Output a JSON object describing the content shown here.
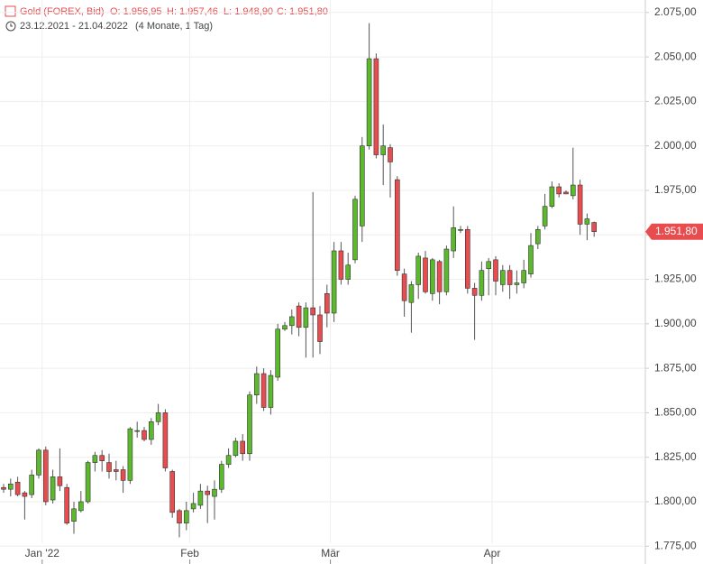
{
  "chart_data": {
    "type": "candlestick",
    "title": "Gold (FOREX, Bid)",
    "ohlc_labels": [
      "O: 1.956,95",
      "H: 1.957,46",
      "L: 1.948,90",
      "C: 1.951,80"
    ],
    "period": "23.12.2021 - 21.04.2022",
    "period_length": "(4 Monate, 1 Tag)",
    "up_color": "#5cb82c",
    "down_color": "#e84c4f",
    "last_price": {
      "value": 1951.8,
      "label": "1.951,80"
    },
    "categories": [
      null,
      null,
      null,
      null,
      null,
      null,
      "Jan '22",
      null,
      null,
      null,
      null,
      null,
      null,
      null,
      null,
      null,
      null,
      null,
      null,
      null,
      null,
      null,
      null,
      null,
      null,
      null,
      null,
      "Feb",
      null,
      null,
      null,
      null,
      null,
      null,
      null,
      null,
      null,
      null,
      null,
      null,
      null,
      null,
      null,
      null,
      null,
      null,
      null,
      "Mär",
      null,
      null,
      null,
      null,
      null,
      null,
      null,
      null,
      null,
      null,
      null,
      null,
      null,
      null,
      null,
      null,
      null,
      null,
      null,
      null,
      null,
      null,
      "Apr",
      null,
      null,
      null,
      null,
      null,
      null,
      null,
      null,
      null,
      null,
      null,
      null,
      null,
      null
    ],
    "series": {
      "open": [
        1808,
        1807,
        1811,
        1805,
        1804,
        1815,
        1829,
        1801,
        1814,
        1808,
        1789,
        1795,
        1800,
        1822,
        1826,
        1822,
        1818,
        1818,
        1812,
        1840,
        1840,
        1835,
        1845,
        1850,
        1817,
        1795,
        1788,
        1796,
        1798,
        1806,
        1803,
        1807,
        1821,
        1826,
        1834,
        1827,
        1860,
        1872,
        1853,
        1870,
        1897,
        1899,
        1910,
        1898,
        1909,
        1905,
        1917,
        1906,
        1941,
        1925,
        1936,
        1955,
        2000,
        2049,
        1995,
        1999,
        1981,
        1928,
        1912,
        1922,
        1937,
        1917,
        1935,
        1918,
        1941,
        1953,
        1953,
        1920,
        1916,
        1931,
        1936,
        1922,
        1930,
        1922,
        1923,
        1928,
        1945,
        1955,
        1966,
        1977,
        1974,
        1972,
        1978,
        1956,
        1956.95
      ],
      "high": [
        1810,
        1813,
        1814,
        1806,
        1818,
        1830,
        1831,
        1818,
        1830,
        1810,
        1800,
        1806,
        1823,
        1828,
        1829,
        1827,
        1823,
        1820,
        1842,
        1845,
        1842,
        1847,
        1855,
        1852,
        1818,
        1796,
        1800,
        1805,
        1810,
        1809,
        1812,
        1823,
        1830,
        1836,
        1838,
        1862,
        1876,
        1875,
        1874,
        1900,
        1901,
        1908,
        1912,
        1912,
        1974,
        1910,
        1922,
        1946,
        1946,
        1940,
        1972,
        2005,
        2069,
        2052,
        2012,
        2001,
        1983,
        1931,
        1924,
        1940,
        1941,
        1937,
        1936,
        1944,
        1966,
        1955,
        1955,
        1923,
        1935,
        1937,
        1938,
        1933,
        1933,
        1930,
        1936,
        1951,
        1955,
        1973,
        1980,
        1979,
        1975,
        1999,
        1981,
        1962,
        1957.46
      ],
      "low": [
        1805,
        1803,
        1803,
        1790,
        1802,
        1813,
        1798,
        1799,
        1806,
        1787,
        1782,
        1794,
        1799,
        1817,
        1817,
        1813,
        1812,
        1805,
        1810,
        1836,
        1834,
        1832,
        1843,
        1817,
        1791,
        1780,
        1784,
        1794,
        1796,
        1788,
        1790,
        1805,
        1819,
        1825,
        1823,
        1823,
        1855,
        1851,
        1849,
        1868,
        1896,
        1894,
        1893,
        1881,
        1881,
        1883,
        1898,
        1901,
        1922,
        1922,
        1934,
        1946,
        1998,
        1993,
        1978,
        1971,
        1927,
        1904,
        1895,
        1914,
        1917,
        1913,
        1911,
        1916,
        1937,
        1951,
        1917,
        1891,
        1913,
        1916,
        1916,
        1918,
        1914,
        1917,
        1920,
        1926,
        1942,
        1953,
        1965,
        1971,
        1973,
        1970,
        1950,
        1947,
        1948.9
      ],
      "close": [
        1807,
        1810,
        1804,
        1803,
        1815,
        1829,
        1800,
        1814,
        1809,
        1788,
        1796,
        1800,
        1822,
        1826,
        1823,
        1817,
        1817,
        1812,
        1841,
        1840,
        1835,
        1845,
        1850,
        1819,
        1794,
        1788,
        1795,
        1799,
        1806,
        1804,
        1807,
        1821,
        1826,
        1834,
        1827,
        1860,
        1872,
        1853,
        1871,
        1897,
        1899,
        1904,
        1898,
        1909,
        1905,
        1890,
        1906,
        1941,
        1925,
        1933,
        1970,
        2000,
        2049,
        1995,
        2000,
        1991,
        1930,
        1913,
        1922,
        1938,
        1918,
        1936,
        1918,
        1942,
        1954,
        1953,
        1920,
        1916,
        1930,
        1935,
        1924,
        1930,
        1922,
        1923,
        1930,
        1944,
        1953,
        1966,
        1977,
        1973,
        1973,
        1978,
        1956,
        1959,
        1951.8
      ]
    },
    "ylim": [
      1765,
      2082
    ],
    "yticks": [
      {
        "value": 1775,
        "label": "1.775,00"
      },
      {
        "value": 1800,
        "label": "1.800,00"
      },
      {
        "value": 1825,
        "label": "1.825,00"
      },
      {
        "value": 1850,
        "label": "1.850,00"
      },
      {
        "value": 1875,
        "label": "1.875,00"
      },
      {
        "value": 1900,
        "label": "1.900,00"
      },
      {
        "value": 1925,
        "label": "1.925,00"
      },
      {
        "value": 1950,
        "label": "1.950,00"
      },
      {
        "value": 1975,
        "label": "1.975,00"
      },
      {
        "value": 2000,
        "label": "2.000,00"
      },
      {
        "value": 2025,
        "label": "2.025,00"
      },
      {
        "value": 2050,
        "label": "2.050,00"
      },
      {
        "value": 2075,
        "label": "2.075,00"
      }
    ],
    "grid": true
  }
}
